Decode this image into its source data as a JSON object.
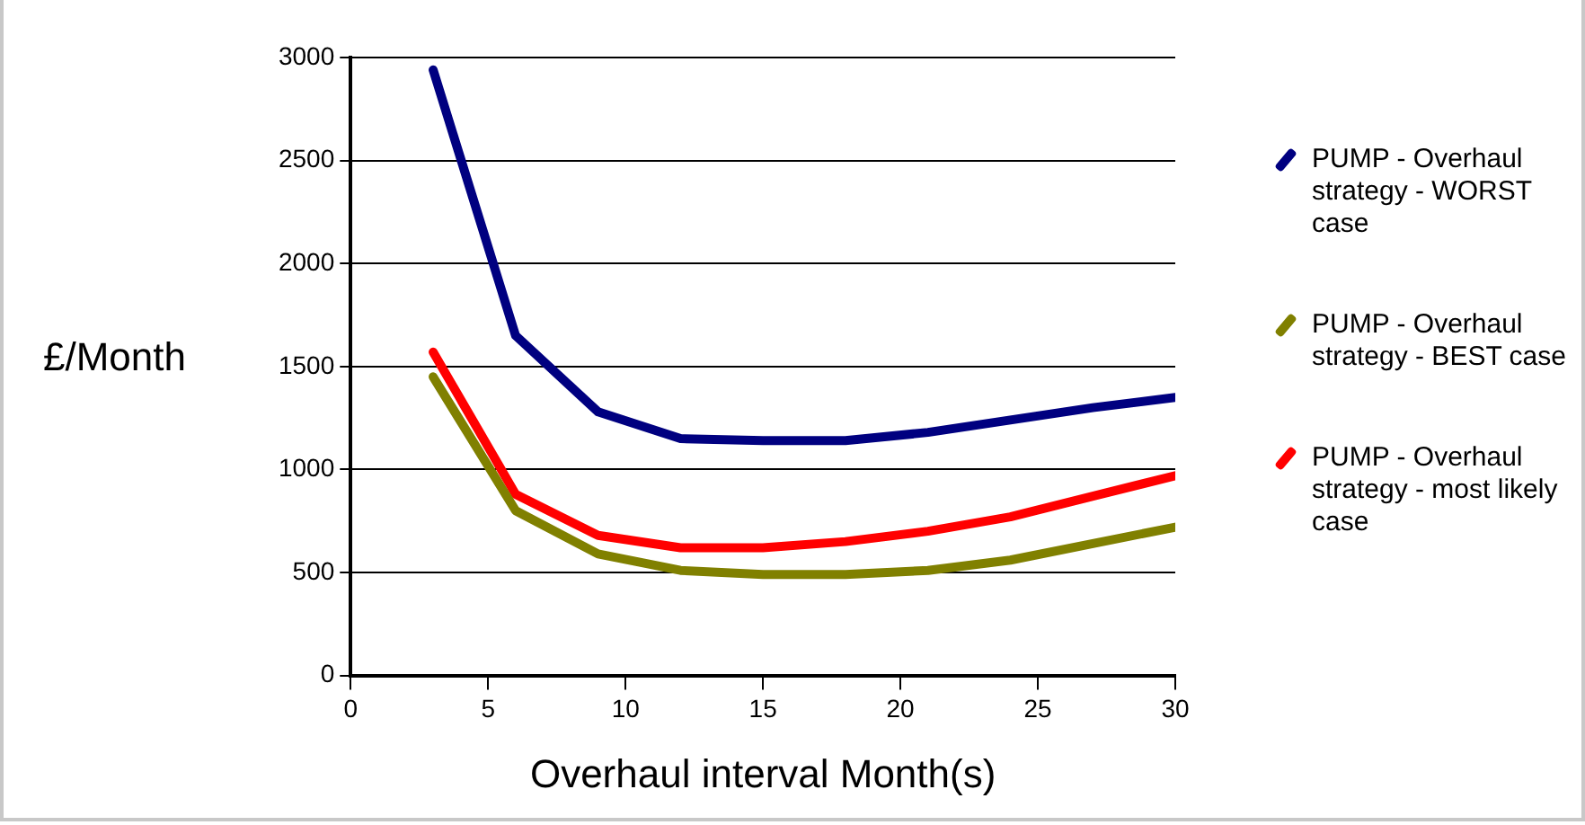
{
  "chart_data": {
    "type": "line",
    "xlabel": "Overhaul interval Month(s)",
    "ylabel": "£/Month",
    "x": [
      3,
      6,
      9,
      12,
      15,
      18,
      21,
      24,
      27,
      30
    ],
    "series": [
      {
        "name": "PUMP - Overhaul strategy - WORST case",
        "color": "#000080",
        "values": [
          2940,
          1650,
          1280,
          1150,
          1140,
          1140,
          1180,
          1240,
          1300,
          1350
        ]
      },
      {
        "name": "PUMP - Overhaul strategy - BEST case",
        "color": "#808000",
        "values": [
          1450,
          800,
          590,
          510,
          490,
          490,
          510,
          560,
          640,
          720
        ]
      },
      {
        "name": "PUMP - Overhaul strategy - most likely case",
        "color": "#ff0000",
        "values": [
          1570,
          880,
          680,
          620,
          620,
          650,
          700,
          770,
          870,
          970
        ]
      }
    ],
    "xlim": [
      0,
      30
    ],
    "xticks": [
      0,
      5,
      10,
      15,
      20,
      25,
      30
    ],
    "ylim": [
      0,
      3000
    ],
    "yticks": [
      0,
      500,
      1000,
      1500,
      2000,
      2500,
      3000
    ],
    "grid": "y",
    "legend": "right",
    "marker": "none",
    "line_style": "solid"
  }
}
